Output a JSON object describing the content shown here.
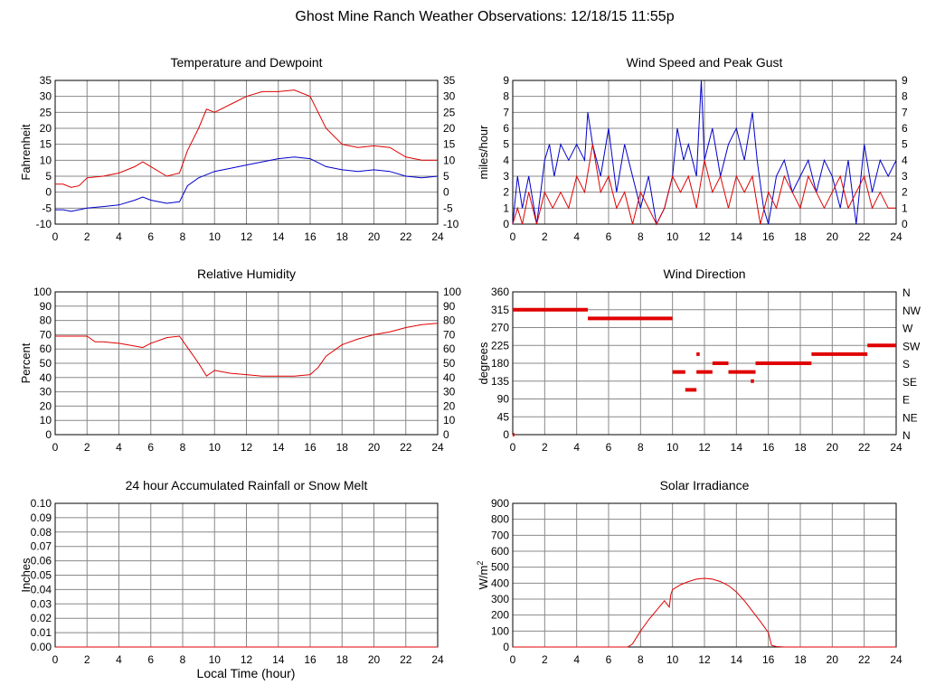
{
  "page_title": "Ghost Mine Ranch Weather Observations: 12/18/15 11:55p",
  "x_axis_caption": "Local Time (hour)",
  "colors": {
    "temperature": "#e00000",
    "dewpoint": "#0000cc",
    "grid": "#888888",
    "axis": "#000000"
  },
  "chart_data": [
    {
      "type": "line",
      "title": "Temperature and Dewpoint",
      "ylabel": "Fahrenheit",
      "xlim": [
        0,
        24
      ],
      "ylim": [
        -10,
        35
      ],
      "x_ticks": [
        0,
        2,
        4,
        6,
        8,
        10,
        12,
        14,
        16,
        18,
        20,
        22,
        24
      ],
      "y_ticks": [
        -10,
        -5,
        0,
        5,
        10,
        15,
        20,
        25,
        30,
        35
      ],
      "right_y_ticks": [
        -10,
        -5,
        0,
        5,
        10,
        15,
        20,
        25,
        30,
        35
      ],
      "grid": true,
      "series": [
        {
          "color": "red",
          "x": [
            0,
            0.5,
            1,
            1.5,
            2,
            3,
            4,
            5,
            5.5,
            6,
            7,
            7.8,
            8.3,
            9,
            9.5,
            10,
            11,
            12,
            13,
            14,
            15,
            16,
            17,
            18,
            19,
            20,
            21,
            22,
            23,
            24
          ],
          "values": [
            2.5,
            2.5,
            1.5,
            2,
            4.5,
            5,
            6,
            8,
            9.5,
            8,
            5,
            6,
            13,
            20,
            26,
            25,
            27.5,
            30,
            31.5,
            31.5,
            32,
            30,
            20,
            15,
            14,
            14.5,
            14,
            11,
            10,
            10
          ]
        },
        {
          "color": "blue",
          "x": [
            0,
            0.5,
            1,
            1.5,
            2,
            3,
            4,
            5,
            5.5,
            6,
            7,
            7.8,
            8.3,
            9,
            10,
            11,
            12,
            13,
            14,
            15,
            16,
            17,
            18,
            19,
            20,
            21,
            22,
            23,
            24
          ],
          "values": [
            -5.5,
            -5.5,
            -6,
            -5.5,
            -5,
            -4.5,
            -4,
            -2.5,
            -1.5,
            -2.5,
            -3.5,
            -3,
            2,
            4.5,
            6.5,
            7.5,
            8.5,
            9.5,
            10.5,
            11,
            10.5,
            8,
            7,
            6.5,
            7,
            6.5,
            5,
            4.5,
            5
          ]
        }
      ]
    },
    {
      "type": "line",
      "title": "Wind Speed and Peak Gust",
      "ylabel": "miles/hour",
      "xlim": [
        0,
        24
      ],
      "ylim": [
        0,
        9
      ],
      "x_ticks": [
        0,
        2,
        4,
        6,
        8,
        10,
        12,
        14,
        16,
        18,
        20,
        22,
        24
      ],
      "y_ticks": [
        0,
        1,
        2,
        3,
        4,
        5,
        6,
        7,
        8,
        9
      ],
      "right_y_ticks": [
        0,
        1,
        2,
        3,
        4,
        5,
        6,
        7,
        8,
        9
      ],
      "grid": true,
      "series": [
        {
          "color": "blue",
          "x": [
            0,
            0.3,
            0.6,
            1,
            1.5,
            2,
            2.3,
            2.6,
            3,
            3.5,
            4,
            4.5,
            4.7,
            5,
            5.5,
            6,
            6.5,
            7,
            7.5,
            8,
            8.5,
            9,
            9.5,
            10,
            10.3,
            10.7,
            11,
            11.5,
            11.8,
            12,
            12.5,
            13,
            13.5,
            14,
            14.5,
            15,
            15.3,
            15.7,
            16,
            16.5,
            17,
            17.5,
            18,
            18.5,
            19,
            19.5,
            20,
            20.5,
            21,
            21.5,
            22,
            22.5,
            23,
            23.5,
            24
          ],
          "values": [
            0,
            3,
            1,
            3,
            0,
            4,
            5,
            3,
            5,
            4,
            5,
            4,
            7,
            5,
            3,
            6,
            2,
            5,
            3,
            1,
            3,
            0,
            1,
            3,
            6,
            4,
            5,
            3,
            9,
            4,
            6,
            3,
            5,
            6,
            4,
            7,
            4,
            1,
            0,
            3,
            4,
            2,
            3,
            4,
            2,
            4,
            3,
            1,
            4,
            0,
            5,
            2,
            4,
            3,
            4
          ]
        },
        {
          "color": "red",
          "x": [
            0,
            0.3,
            0.6,
            1,
            1.5,
            2,
            2.5,
            3,
            3.5,
            4,
            4.5,
            5,
            5.5,
            6,
            6.5,
            7,
            7.5,
            8,
            8.5,
            9,
            9.5,
            10,
            10.5,
            11,
            11.5,
            12,
            12.5,
            13,
            13.5,
            14,
            14.5,
            15,
            15.5,
            16,
            16.5,
            17,
            17.5,
            18,
            18.5,
            19,
            19.5,
            20,
            20.5,
            21,
            21.5,
            22,
            22.5,
            23,
            23.5,
            24
          ],
          "values": [
            0,
            1,
            0,
            2,
            0,
            2,
            1,
            2,
            1,
            3,
            2,
            5,
            2,
            3,
            1,
            2,
            0,
            2,
            1,
            0,
            1,
            3,
            2,
            3,
            1,
            4,
            2,
            3,
            1,
            3,
            2,
            3,
            0,
            2,
            1,
            3,
            2,
            1,
            3,
            2,
            1,
            2,
            3,
            1,
            2,
            3,
            1,
            2,
            1,
            1
          ]
        }
      ]
    },
    {
      "type": "line",
      "title": "Relative Humidity",
      "ylabel": "Percent",
      "xlim": [
        0,
        24
      ],
      "ylim": [
        0,
        100
      ],
      "x_ticks": [
        0,
        2,
        4,
        6,
        8,
        10,
        12,
        14,
        16,
        18,
        20,
        22,
        24
      ],
      "y_ticks": [
        0,
        10,
        20,
        30,
        40,
        50,
        60,
        70,
        80,
        90,
        100
      ],
      "right_y_ticks": [
        0,
        10,
        20,
        30,
        40,
        50,
        60,
        70,
        80,
        90,
        100
      ],
      "grid": true,
      "series": [
        {
          "color": "red",
          "x": [
            0,
            1,
            2,
            2.5,
            3,
            4,
            5,
            5.5,
            6,
            7,
            7.8,
            8.5,
            9,
            9.5,
            10,
            11,
            12,
            13,
            14,
            15,
            16,
            16.5,
            17,
            18,
            19,
            20,
            21,
            22,
            23,
            24
          ],
          "values": [
            69,
            69,
            69,
            65,
            65,
            64,
            62,
            61,
            64,
            68,
            69,
            58,
            50,
            41,
            45,
            43,
            42,
            41,
            41,
            41,
            42,
            47,
            55,
            63,
            67,
            70,
            72,
            75,
            77,
            78
          ]
        }
      ]
    },
    {
      "type": "scatter",
      "title": "Wind Direction",
      "ylabel": "degrees",
      "xlim": [
        0,
        24
      ],
      "ylim": [
        0,
        360
      ],
      "x_ticks": [
        0,
        2,
        4,
        6,
        8,
        10,
        12,
        14,
        16,
        18,
        20,
        22,
        24
      ],
      "y_ticks": [
        0,
        45,
        90,
        135,
        180,
        225,
        270,
        315,
        360
      ],
      "right_y_labels": [
        "N",
        "NE",
        "E",
        "SE",
        "S",
        "SW",
        "W",
        "NW",
        "N"
      ],
      "grid": true,
      "segments": [
        {
          "x": [
            0,
            0.1
          ],
          "value": 0
        },
        {
          "x": [
            0,
            4.7
          ],
          "value": 315
        },
        {
          "x": [
            4.7,
            10
          ],
          "value": 293
        },
        {
          "x": [
            10,
            10.8
          ],
          "value": 158
        },
        {
          "x": [
            10.8,
            11.5
          ],
          "value": 113
        },
        {
          "x": [
            11.5,
            11.7
          ],
          "value": 203
        },
        {
          "x": [
            11.5,
            12.5
          ],
          "value": 158
        },
        {
          "x": [
            12.5,
            13.5
          ],
          "value": 180
        },
        {
          "x": [
            13.5,
            15.2
          ],
          "value": 158
        },
        {
          "x": [
            14.9,
            15.1
          ],
          "value": 135
        },
        {
          "x": [
            15.2,
            18.7
          ],
          "value": 180
        },
        {
          "x": [
            18.7,
            22.2
          ],
          "value": 203
        },
        {
          "x": [
            22.2,
            24
          ],
          "value": 225
        }
      ]
    },
    {
      "type": "line",
      "title": "24 hour Accumulated Rainfall or Snow Melt",
      "ylabel": "Inches",
      "xlabel": "Local Time (hour)",
      "xlim": [
        0,
        24
      ],
      "ylim": [
        0,
        0.1
      ],
      "x_ticks": [
        0,
        2,
        4,
        6,
        8,
        10,
        12,
        14,
        16,
        18,
        20,
        22,
        24
      ],
      "y_ticks": [
        "0.00",
        "0.01",
        "0.02",
        "0.03",
        "0.04",
        "0.05",
        "0.06",
        "0.07",
        "0.08",
        "0.09",
        "0.10"
      ],
      "grid": true,
      "series": [
        {
          "color": "red",
          "x": [
            0,
            24
          ],
          "values": [
            0,
            0
          ]
        }
      ]
    },
    {
      "type": "line",
      "title": "Solar Irradiance",
      "ylabel": "W/m",
      "ylabel_superscript": "2",
      "xlim": [
        0,
        24
      ],
      "ylim": [
        0,
        900
      ],
      "x_ticks": [
        0,
        2,
        4,
        6,
        8,
        10,
        12,
        14,
        16,
        18,
        20,
        22,
        24
      ],
      "y_ticks": [
        0,
        100,
        200,
        300,
        400,
        500,
        600,
        700,
        800,
        900
      ],
      "grid": true,
      "series": [
        {
          "color": "red",
          "x": [
            0,
            7.2,
            7.5,
            8,
            8.5,
            9,
            9.5,
            9.8,
            9.9,
            10,
            10.5,
            11,
            11.5,
            12,
            12.5,
            13,
            13.5,
            14,
            14.5,
            15,
            15.5,
            16,
            16.2,
            16.5,
            17,
            24
          ],
          "values": [
            0,
            0,
            20,
            100,
            170,
            230,
            290,
            250,
            330,
            360,
            390,
            410,
            425,
            430,
            425,
            410,
            385,
            345,
            290,
            225,
            160,
            90,
            10,
            3,
            0,
            0
          ]
        }
      ]
    }
  ]
}
